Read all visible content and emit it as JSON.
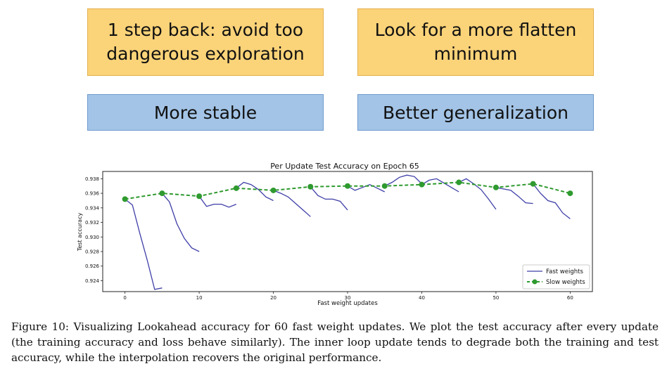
{
  "boxes": {
    "top_left": "1 step back: avoid too dangerous exploration",
    "top_right": "Look for a more flatten minimum",
    "bottom_left": "More stable",
    "bottom_right": "Better generalization"
  },
  "colors": {
    "orange_fill": "#fbd379",
    "blue_fill": "#a3c4e6",
    "fast_line": "#3f3fa8",
    "slow_line": "#2f9a2f"
  },
  "chart_data": {
    "type": "line",
    "title": "Per Update Test Accuracy on Epoch 65",
    "xlabel": "Fast weight updates",
    "ylabel": "Test accuracy",
    "xlim": [
      -3,
      63
    ],
    "ylim": [
      0.9225,
      0.939
    ],
    "xticks": [
      0,
      10,
      20,
      30,
      40,
      50,
      60
    ],
    "yticks": [
      0.924,
      0.926,
      0.928,
      0.93,
      0.932,
      0.934,
      0.936,
      0.938
    ],
    "legend": "bottom-right",
    "grid": false,
    "series": [
      {
        "name": "Fast weights",
        "segments": [
          {
            "x": [
              0,
              1,
              2,
              3,
              4,
              5
            ],
            "y": [
              0.9352,
              0.9344,
              0.9305,
              0.9268,
              0.9228,
              0.923
            ]
          },
          {
            "x": [
              5,
              6,
              7,
              8,
              9,
              10
            ],
            "y": [
              0.936,
              0.9348,
              0.9318,
              0.9298,
              0.9285,
              0.928
            ]
          },
          {
            "x": [
              10,
              11,
              12,
              13,
              14,
              15
            ],
            "y": [
              0.9356,
              0.9342,
              0.9345,
              0.9345,
              0.9341,
              0.9345
            ]
          },
          {
            "x": [
              15,
              16,
              17,
              18,
              19,
              20
            ],
            "y": [
              0.9367,
              0.9375,
              0.9372,
              0.9365,
              0.9355,
              0.935
            ]
          },
          {
            "x": [
              20,
              21,
              22,
              23,
              24,
              25
            ],
            "y": [
              0.9364,
              0.936,
              0.9355,
              0.9346,
              0.9337,
              0.9328
            ]
          },
          {
            "x": [
              25,
              26,
              27,
              28,
              29,
              30
            ],
            "y": [
              0.9369,
              0.9357,
              0.9352,
              0.9352,
              0.9349,
              0.9337
            ]
          },
          {
            "x": [
              30,
              31,
              32,
              33,
              34,
              35
            ],
            "y": [
              0.937,
              0.9364,
              0.9368,
              0.9372,
              0.9367,
              0.9362
            ]
          },
          {
            "x": [
              35,
              36,
              37,
              38,
              39,
              40
            ],
            "y": [
              0.937,
              0.9375,
              0.9382,
              0.9385,
              0.9383,
              0.9373
            ]
          },
          {
            "x": [
              40,
              41,
              42,
              43,
              44,
              45
            ],
            "y": [
              0.9372,
              0.9378,
              0.938,
              0.9374,
              0.9368,
              0.9362
            ]
          },
          {
            "x": [
              45,
              46,
              47,
              48,
              49,
              50
            ],
            "y": [
              0.9375,
              0.938,
              0.9373,
              0.9365,
              0.9352,
              0.9338
            ]
          },
          {
            "x": [
              50,
              51,
              52,
              53,
              54,
              55
            ],
            "y": [
              0.9368,
              0.9366,
              0.9364,
              0.9356,
              0.9347,
              0.9346
            ]
          },
          {
            "x": [
              55,
              56,
              57,
              58,
              59,
              60
            ],
            "y": [
              0.9373,
              0.936,
              0.935,
              0.9347,
              0.9333,
              0.9325
            ]
          }
        ]
      },
      {
        "name": "Slow weights",
        "x": [
          0,
          5,
          10,
          15,
          20,
          25,
          30,
          35,
          40,
          45,
          50,
          55,
          60
        ],
        "y": [
          0.9352,
          0.936,
          0.9356,
          0.9367,
          0.9364,
          0.9369,
          0.937,
          0.937,
          0.9372,
          0.9375,
          0.9368,
          0.9373,
          0.936
        ]
      }
    ]
  },
  "caption": "Figure 10: Visualizing Lookahead accuracy for 60 fast weight updates. We plot the test accuracy after every update (the training accuracy and loss behave similarly). The inner loop update tends to degrade both the training and test accuracy, while the interpolation recovers the original performance."
}
